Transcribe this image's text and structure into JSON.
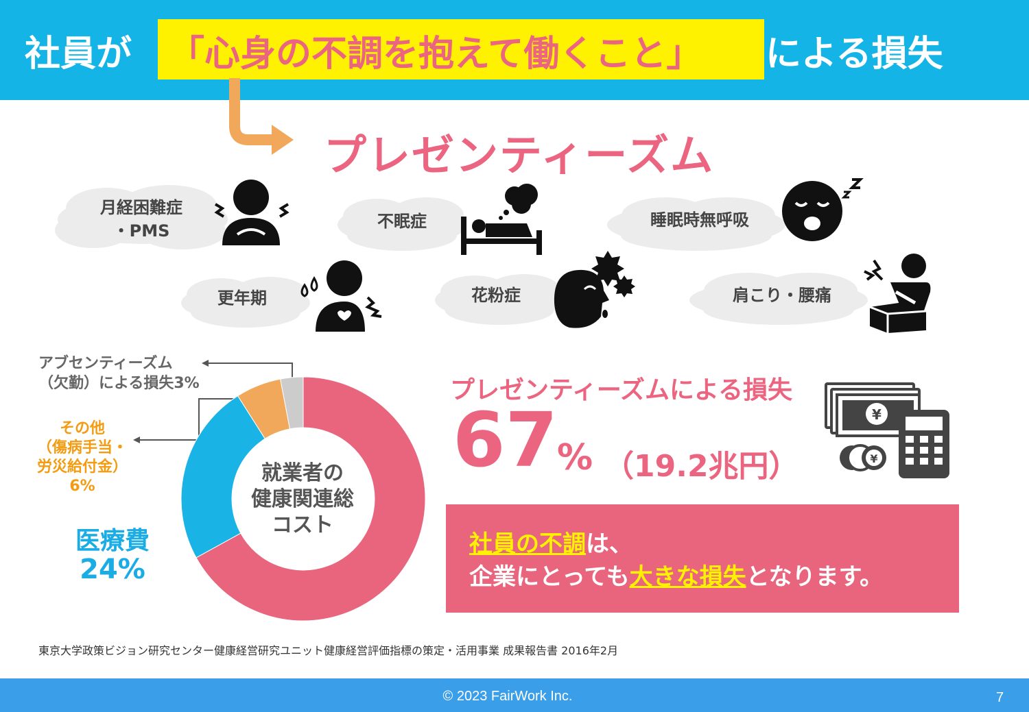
{
  "header": {
    "prefix": "社員が",
    "highlight": "「心身の不調を抱えて働くこと」",
    "suffix": "による損失"
  },
  "subtitle": "プレゼンティーズム",
  "conditions": [
    {
      "line1": "月経困難症",
      "line2": "・PMS",
      "icon": "menstrual-pain-person-icon"
    },
    {
      "line1": "不眠症",
      "line2": "",
      "icon": "insomnia-bed-icon"
    },
    {
      "line1": "睡眠時無呼吸",
      "line2": "",
      "icon": "sleep-apnea-face-icon"
    },
    {
      "line1": "更年期",
      "line2": "",
      "icon": "menopause-person-icon"
    },
    {
      "line1": "花粉症",
      "line2": "",
      "icon": "hay-fever-face-icon"
    },
    {
      "line1": "肩こり・腰痛",
      "line2": "",
      "icon": "back-pain-person-icon"
    }
  ],
  "chart_data": {
    "type": "pie",
    "title": "",
    "center_label_lines": [
      "就業者の",
      "健康関連総",
      "コスト"
    ],
    "slices": [
      {
        "label": "プレゼンティーズムによる損失",
        "value": 67,
        "color": "#e9657d"
      },
      {
        "label": "医療費",
        "value": 24,
        "color": "#19b3e6"
      },
      {
        "label": "その他（傷病手当・労災給付金）",
        "value": 6,
        "color": "#f2a85a"
      },
      {
        "label": "アブセンティーズム（欠勤）による損失",
        "value": 3,
        "color": "#cccccc"
      }
    ]
  },
  "legend": {
    "absenteeism_line1": "アブセンティーズム",
    "absenteeism_line2": "（欠勤）による損失3%",
    "other_line1": "その他",
    "other_line2": "（傷病手当・",
    "other_line3": "労災給付金）",
    "other_line4": "6%",
    "medical_label": "医療費",
    "medical_value": "24%"
  },
  "loss": {
    "title": "プレゼンティーズムによる損失",
    "percent": "67",
    "percent_unit": "%",
    "amount": "（19.2兆円）"
  },
  "message": {
    "l1_highlight": "社員の不調",
    "l1_rest": "は、",
    "l2_pre": "企業にとっても",
    "l2_highlight": "大きな損失",
    "l2_post": "となります。"
  },
  "source": "東京大学政策ビジョン研究センター健康経営研究ユニット健康経営評価指標の策定・活用事業 成果報告書 2016年2月",
  "footer": {
    "copyright": "© 2023 FairWork Inc.",
    "page": "7"
  },
  "colors": {
    "header_bg": "#14b4e6",
    "highlight_bg": "#fff200",
    "accent_pink": "#ec6580",
    "footer_bg": "#3a9ee8",
    "medical_blue": "#1aace4",
    "other_orange": "#f39c12"
  }
}
